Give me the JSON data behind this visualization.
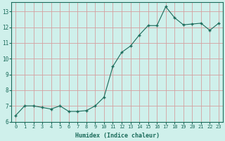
{
  "x": [
    0,
    1,
    2,
    3,
    4,
    5,
    6,
    7,
    8,
    9,
    10,
    11,
    12,
    13,
    14,
    15,
    16,
    17,
    18,
    19,
    20,
    21,
    22,
    23
  ],
  "y": [
    6.4,
    7.0,
    7.0,
    6.9,
    6.8,
    7.0,
    6.65,
    6.65,
    6.7,
    7.0,
    7.55,
    9.5,
    10.4,
    10.8,
    11.5,
    12.1,
    12.1,
    13.3,
    12.6,
    12.15,
    12.2,
    12.25,
    11.8,
    12.25
  ],
  "xlabel": "Humidex (Indice chaleur)",
  "bg_color": "#cff0eb",
  "line_color": "#1a6b5a",
  "marker_color": "#1a6b5a",
  "grid_color": "#d4a0a0",
  "tick_label_color": "#1a6b5a",
  "xlim": [
    -0.5,
    23.5
  ],
  "ylim": [
    6,
    13.6
  ],
  "yticks": [
    6,
    7,
    8,
    9,
    10,
    11,
    12,
    13
  ],
  "xticks": [
    0,
    1,
    2,
    3,
    4,
    5,
    6,
    7,
    8,
    9,
    10,
    11,
    12,
    13,
    14,
    15,
    16,
    17,
    18,
    19,
    20,
    21,
    22,
    23
  ]
}
